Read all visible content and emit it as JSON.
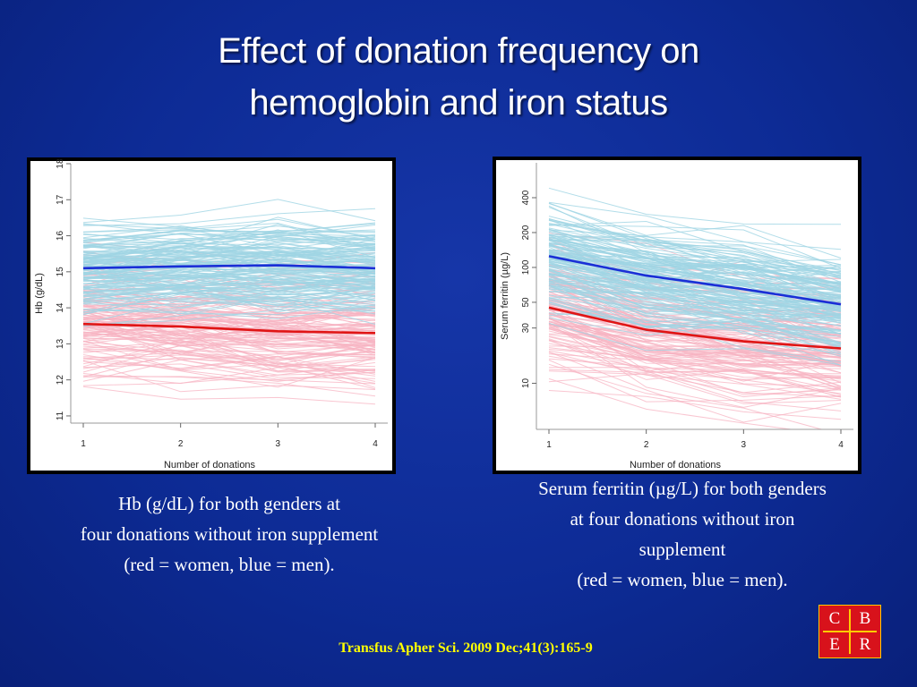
{
  "title": {
    "line1": "Effect of donation frequency on",
    "line2": "hemoglobin and iron status"
  },
  "captions": {
    "left": [
      "Hb (g/dL) for both genders at",
      "four donations without iron supplement",
      "(red = women, blue = men)."
    ],
    "right": [
      "Serum ferritin (µg/L) for both genders",
      "at four donations without iron",
      "supplement",
      "(red = women, blue = men)."
    ]
  },
  "citation": "Transfus Apher Sci. 2009 Dec;41(3):165-9",
  "logo": {
    "letters": [
      "C",
      "B",
      "E",
      "R"
    ]
  },
  "colors": {
    "men_mean": "#1a2fd6",
    "women_mean": "#e01515",
    "men_lines": "#9fd4e4",
    "women_lines": "#f7b3c2"
  },
  "chart_data": [
    {
      "type": "line",
      "xlabel": "Number of donations",
      "ylabel": "Hb (g/dL)",
      "x": [
        1,
        2,
        3,
        4
      ],
      "xticks": [
        "1",
        "2",
        "3",
        "4"
      ],
      "ylim": [
        10.8,
        18
      ],
      "yticks": [
        "11",
        "12",
        "13",
        "14",
        "15",
        "16",
        "17",
        "18"
      ],
      "series": [
        {
          "values": [
            15.1,
            15.15,
            15.18,
            15.1
          ]
        },
        {
          "values": [
            13.55,
            13.48,
            13.35,
            13.3
          ]
        }
      ]
    },
    {
      "type": "line",
      "yscale": "log",
      "xlabel": "Number of donations",
      "ylabel": "Serum ferritin (µg/L)",
      "x": [
        1,
        2,
        3,
        4
      ],
      "xticks": [
        "1",
        "2",
        "3",
        "4"
      ],
      "ylim": [
        4,
        800
      ],
      "yticks": [
        "10",
        "30",
        "50",
        "100",
        "200",
        "400"
      ],
      "series": [
        {
          "values": [
            125,
            85,
            65,
            48
          ]
        },
        {
          "values": [
            45,
            29,
            23,
            20
          ]
        }
      ]
    }
  ]
}
